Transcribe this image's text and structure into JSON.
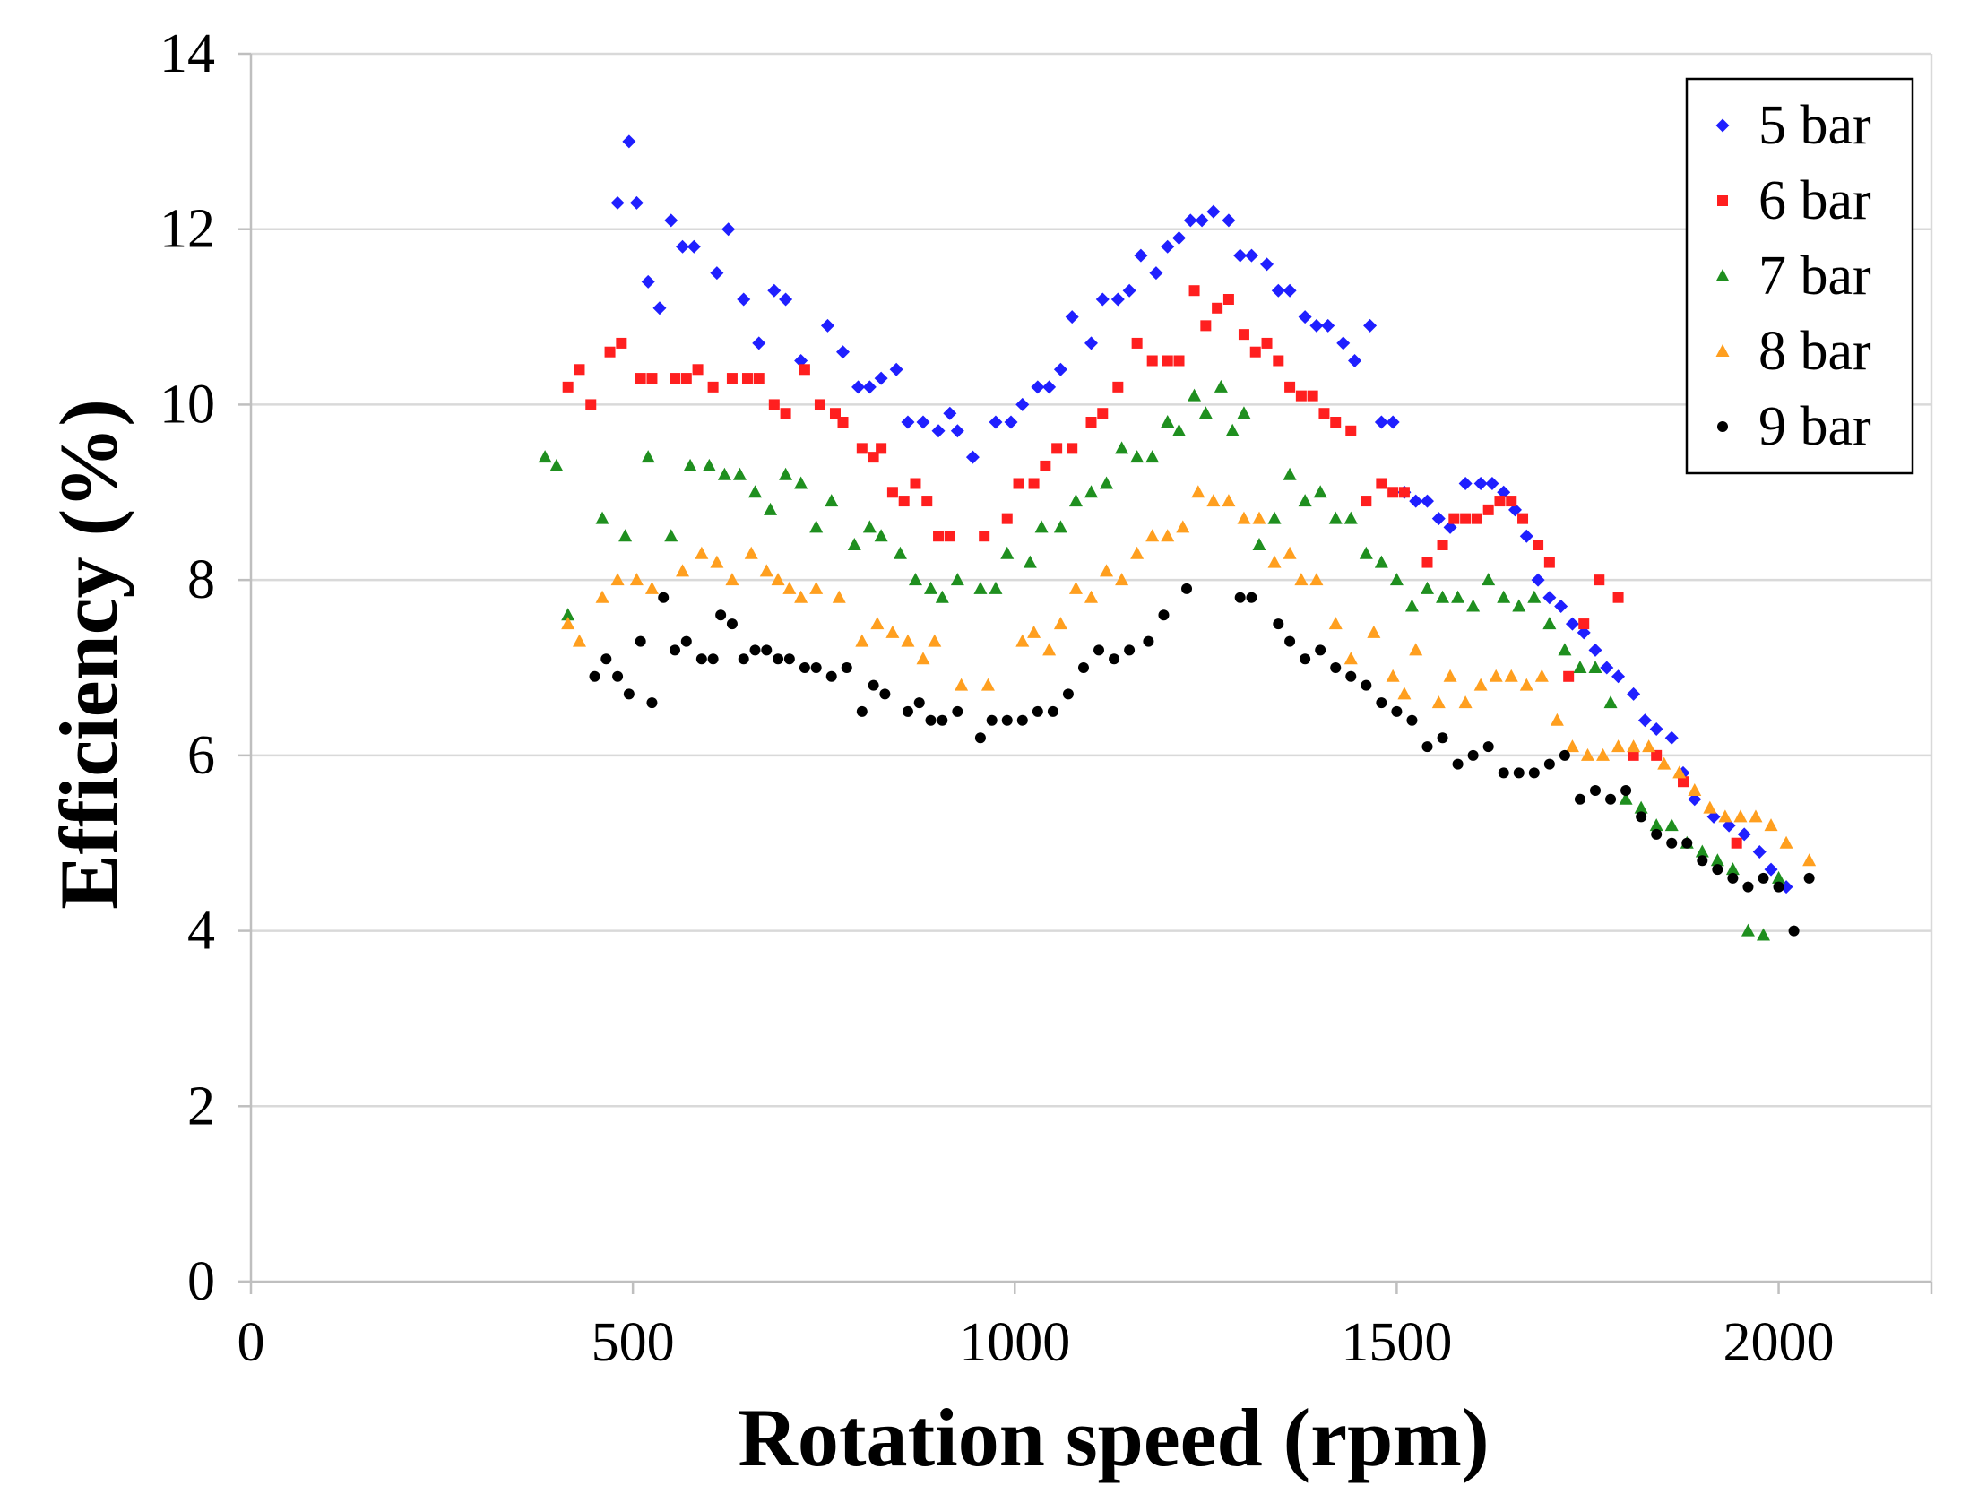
{
  "chart_data": {
    "type": "scatter",
    "title": "",
    "xlabel": "Rotation speed (rpm)",
    "ylabel": "Efficiency (%)",
    "xlim": [
      0,
      2200
    ],
    "ylim": [
      0,
      14
    ],
    "xticks": [
      0,
      500,
      1000,
      1500,
      2000
    ],
    "yticks": [
      0,
      2,
      4,
      6,
      8,
      10,
      12,
      14
    ],
    "grid": "horizontal",
    "legend_position": "top-right",
    "series": [
      {
        "name": "5 bar",
        "color": "#1f1fff",
        "marker": "diamond",
        "x": [
          480,
          495,
          505,
          520,
          535,
          550,
          565,
          580,
          610,
          625,
          645,
          665,
          685,
          700,
          720,
          755,
          775,
          795,
          810,
          825,
          845,
          860,
          880,
          900,
          915,
          925,
          945,
          975,
          995,
          1010,
          1030,
          1045,
          1060,
          1075,
          1100,
          1115,
          1135,
          1150,
          1165,
          1185,
          1200,
          1215,
          1230,
          1245,
          1260,
          1280,
          1295,
          1310,
          1330,
          1345,
          1360,
          1380,
          1395,
          1410,
          1430,
          1445,
          1465,
          1480,
          1495,
          1510,
          1525,
          1540,
          1555,
          1570,
          1590,
          1610,
          1625,
          1640,
          1655,
          1670,
          1685,
          1700,
          1715,
          1730,
          1745,
          1760,
          1775,
          1790,
          1810,
          1825,
          1840,
          1860,
          1875,
          1890,
          1915,
          1935,
          1955,
          1975,
          1990,
          2010
        ],
        "y": [
          12.3,
          13.0,
          12.3,
          11.4,
          11.1,
          12.1,
          11.8,
          11.8,
          11.5,
          12.0,
          11.2,
          10.7,
          11.3,
          11.2,
          10.5,
          10.9,
          10.6,
          10.2,
          10.2,
          10.3,
          10.4,
          9.8,
          9.8,
          9.7,
          9.9,
          9.7,
          9.4,
          9.8,
          9.8,
          10.0,
          10.2,
          10.2,
          10.4,
          11.0,
          10.7,
          11.2,
          11.2,
          11.3,
          11.7,
          11.5,
          11.8,
          11.9,
          12.1,
          12.1,
          12.2,
          12.1,
          11.7,
          11.7,
          11.6,
          11.3,
          11.3,
          11.0,
          10.9,
          10.9,
          10.7,
          10.5,
          10.9,
          9.8,
          9.8,
          9.0,
          8.9,
          8.9,
          8.7,
          8.6,
          9.1,
          9.1,
          9.1,
          9.0,
          8.8,
          8.5,
          8.0,
          7.8,
          7.7,
          7.5,
          7.4,
          7.2,
          7.0,
          6.9,
          6.7,
          6.4,
          6.3,
          6.2,
          5.8,
          5.5,
          5.3,
          5.2,
          5.1,
          4.9,
          4.7,
          4.5
        ]
      },
      {
        "name": "6 bar",
        "color": "#ff1f1f",
        "marker": "square",
        "x": [
          415,
          430,
          445,
          470,
          485,
          510,
          525,
          555,
          570,
          585,
          605,
          630,
          650,
          665,
          685,
          700,
          725,
          745,
          765,
          775,
          800,
          815,
          825,
          840,
          855,
          870,
          885,
          900,
          915,
          960,
          990,
          1005,
          1025,
          1040,
          1055,
          1075,
          1100,
          1115,
          1135,
          1160,
          1180,
          1200,
          1215,
          1235,
          1250,
          1265,
          1280,
          1300,
          1315,
          1330,
          1345,
          1360,
          1375,
          1390,
          1405,
          1420,
          1440,
          1460,
          1480,
          1495,
          1510,
          1540,
          1560,
          1575,
          1590,
          1605,
          1620,
          1635,
          1650,
          1665,
          1685,
          1700,
          1725,
          1745,
          1765,
          1790,
          1810,
          1840,
          1875,
          1945
        ],
        "y": [
          10.2,
          10.4,
          10.0,
          10.6,
          10.7,
          10.3,
          10.3,
          10.3,
          10.3,
          10.4,
          10.2,
          10.3,
          10.3,
          10.3,
          10.0,
          9.9,
          10.4,
          10.0,
          9.9,
          9.8,
          9.5,
          9.4,
          9.5,
          9.0,
          8.9,
          9.1,
          8.9,
          8.5,
          8.5,
          8.5,
          8.7,
          9.1,
          9.1,
          9.3,
          9.5,
          9.5,
          9.8,
          9.9,
          10.2,
          10.7,
          10.5,
          10.5,
          10.5,
          11.3,
          10.9,
          11.1,
          11.2,
          10.8,
          10.6,
          10.7,
          10.5,
          10.2,
          10.1,
          10.1,
          9.9,
          9.8,
          9.7,
          8.9,
          9.1,
          9.0,
          9.0,
          8.2,
          8.4,
          8.7,
          8.7,
          8.7,
          8.8,
          8.9,
          8.9,
          8.7,
          8.4,
          8.2,
          6.9,
          7.5,
          8.0,
          7.8,
          6.0,
          6.0,
          5.7,
          5.0
        ]
      },
      {
        "name": "7 bar",
        "color": "#1f8f1f",
        "marker": "triangle",
        "x": [
          385,
          400,
          415,
          460,
          490,
          520,
          550,
          575,
          600,
          620,
          640,
          660,
          680,
          700,
          720,
          740,
          760,
          790,
          810,
          825,
          850,
          870,
          890,
          905,
          925,
          955,
          975,
          990,
          1020,
          1035,
          1060,
          1080,
          1100,
          1120,
          1140,
          1160,
          1180,
          1200,
          1215,
          1235,
          1250,
          1270,
          1285,
          1300,
          1320,
          1340,
          1360,
          1380,
          1400,
          1420,
          1440,
          1460,
          1480,
          1500,
          1520,
          1540,
          1560,
          1580,
          1600,
          1620,
          1640,
          1660,
          1680,
          1700,
          1720,
          1740,
          1760,
          1780,
          1800,
          1820,
          1840,
          1860,
          1880,
          1900,
          1920,
          1940,
          1960,
          1980,
          2000
        ],
        "y": [
          9.4,
          9.3,
          7.6,
          8.7,
          8.5,
          9.4,
          8.5,
          9.3,
          9.3,
          9.2,
          9.2,
          9.0,
          8.8,
          9.2,
          9.1,
          8.6,
          8.9,
          8.4,
          8.6,
          8.5,
          8.3,
          8.0,
          7.9,
          7.8,
          8.0,
          7.9,
          7.9,
          8.3,
          8.2,
          8.6,
          8.6,
          8.9,
          9.0,
          9.1,
          9.5,
          9.4,
          9.4,
          9.8,
          9.7,
          10.1,
          9.9,
          10.2,
          9.7,
          9.9,
          8.4,
          8.7,
          9.2,
          8.9,
          9.0,
          8.7,
          8.7,
          8.3,
          8.2,
          8.0,
          7.7,
          7.9,
          7.8,
          7.8,
          7.7,
          8.0,
          7.8,
          7.7,
          7.8,
          7.5,
          7.2,
          7.0,
          7.0,
          6.6,
          5.5,
          5.4,
          5.2,
          5.2,
          5.0,
          4.9,
          4.8,
          4.7,
          4.0,
          3.95,
          4.6
        ]
      },
      {
        "name": "8 bar",
        "color": "#ff9f1f",
        "marker": "triangle",
        "x": [
          415,
          430,
          460,
          480,
          505,
          525,
          565,
          590,
          610,
          630,
          655,
          675,
          690,
          705,
          720,
          740,
          770,
          800,
          820,
          840,
          860,
          880,
          895,
          930,
          965,
          1010,
          1025,
          1045,
          1060,
          1080,
          1100,
          1120,
          1140,
          1160,
          1180,
          1200,
          1220,
          1240,
          1260,
          1280,
          1300,
          1320,
          1340,
          1360,
          1375,
          1395,
          1420,
          1440,
          1470,
          1495,
          1510,
          1525,
          1555,
          1570,
          1590,
          1610,
          1630,
          1650,
          1670,
          1690,
          1710,
          1730,
          1750,
          1770,
          1790,
          1810,
          1830,
          1850,
          1870,
          1890,
          1910,
          1930,
          1950,
          1970,
          1990,
          2010,
          2040
        ],
        "y": [
          7.5,
          7.3,
          7.8,
          8.0,
          8.0,
          7.9,
          8.1,
          8.3,
          8.2,
          8.0,
          8.3,
          8.1,
          8.0,
          7.9,
          7.8,
          7.9,
          7.8,
          7.3,
          7.5,
          7.4,
          7.3,
          7.1,
          7.3,
          6.8,
          6.8,
          7.3,
          7.4,
          7.2,
          7.5,
          7.9,
          7.8,
          8.1,
          8.0,
          8.3,
          8.5,
          8.5,
          8.6,
          9.0,
          8.9,
          8.9,
          8.7,
          8.7,
          8.2,
          8.3,
          8.0,
          8.0,
          7.5,
          7.1,
          7.4,
          6.9,
          6.7,
          7.2,
          6.6,
          6.9,
          6.6,
          6.8,
          6.9,
          6.9,
          6.8,
          6.9,
          6.4,
          6.1,
          6.0,
          6.0,
          6.1,
          6.1,
          6.1,
          5.9,
          5.8,
          5.6,
          5.4,
          5.3,
          5.3,
          5.3,
          5.2,
          5.0,
          4.8
        ]
      },
      {
        "name": "9 bar",
        "color": "#000000",
        "marker": "circle",
        "x": [
          450,
          465,
          480,
          495,
          510,
          525,
          540,
          555,
          570,
          590,
          605,
          615,
          630,
          645,
          660,
          675,
          690,
          705,
          725,
          740,
          760,
          780,
          800,
          815,
          830,
          860,
          875,
          890,
          905,
          925,
          955,
          970,
          990,
          1010,
          1030,
          1050,
          1070,
          1090,
          1110,
          1130,
          1150,
          1175,
          1195,
          1225,
          1295,
          1310,
          1345,
          1360,
          1380,
          1400,
          1420,
          1440,
          1460,
          1480,
          1500,
          1520,
          1540,
          1560,
          1580,
          1600,
          1620,
          1640,
          1660,
          1680,
          1700,
          1720,
          1740,
          1760,
          1780,
          1800,
          1820,
          1840,
          1860,
          1880,
          1900,
          1920,
          1940,
          1960,
          1980,
          2000,
          2020,
          2040
        ],
        "y": [
          6.9,
          7.1,
          6.9,
          6.7,
          7.3,
          6.6,
          7.8,
          7.2,
          7.3,
          7.1,
          7.1,
          7.6,
          7.5,
          7.1,
          7.2,
          7.2,
          7.1,
          7.1,
          7.0,
          7.0,
          6.9,
          7.0,
          6.5,
          6.8,
          6.7,
          6.5,
          6.6,
          6.4,
          6.4,
          6.5,
          6.2,
          6.4,
          6.4,
          6.4,
          6.5,
          6.5,
          6.7,
          7.0,
          7.2,
          7.1,
          7.2,
          7.3,
          7.6,
          7.9,
          7.8,
          7.8,
          7.5,
          7.3,
          7.1,
          7.2,
          7.0,
          6.9,
          6.8,
          6.6,
          6.5,
          6.4,
          6.1,
          6.2,
          5.9,
          6.0,
          6.1,
          5.8,
          5.8,
          5.8,
          5.9,
          6.0,
          5.5,
          5.6,
          5.5,
          5.6,
          5.3,
          5.1,
          5.0,
          5.0,
          4.8,
          4.7,
          4.6,
          4.5,
          4.6,
          4.5,
          4.0,
          4.6
        ]
      }
    ]
  }
}
